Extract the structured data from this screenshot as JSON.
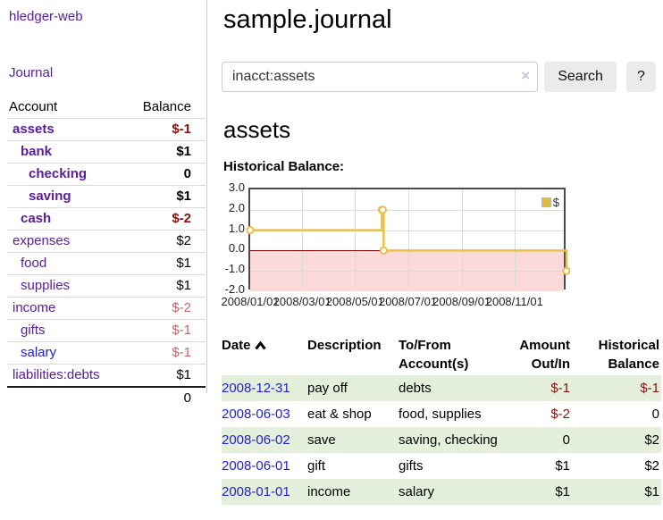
{
  "app": {
    "title": "hledger-web",
    "nav_journal": "Journal"
  },
  "sidebar": {
    "header": {
      "account": "Account",
      "balance": "Balance"
    },
    "accounts": [
      {
        "name": "assets",
        "depth": 0,
        "bold": true,
        "blue": false,
        "balance": "$-1",
        "balance_style": "neg-strong"
      },
      {
        "name": "bank",
        "depth": 1,
        "bold": true,
        "blue": false,
        "balance": "$1",
        "balance_style": "pos"
      },
      {
        "name": "checking",
        "depth": 2,
        "bold": true,
        "blue": false,
        "balance": "0",
        "balance_style": "pos"
      },
      {
        "name": "saving",
        "depth": 2,
        "bold": true,
        "blue": false,
        "balance": "$1",
        "balance_style": "pos"
      },
      {
        "name": "cash",
        "depth": 1,
        "bold": true,
        "blue": false,
        "balance": "$-2",
        "balance_style": "neg-strong"
      },
      {
        "name": "expenses",
        "depth": 0,
        "bold": false,
        "blue": false,
        "balance": "$2",
        "balance_style": "pos"
      },
      {
        "name": "food",
        "depth": 1,
        "bold": false,
        "blue": false,
        "balance": "$1",
        "balance_style": "pos"
      },
      {
        "name": "supplies",
        "depth": 1,
        "bold": false,
        "blue": false,
        "balance": "$1",
        "balance_style": "pos"
      },
      {
        "name": "income",
        "depth": 0,
        "bold": false,
        "blue": false,
        "balance": "$-2",
        "balance_style": "neg-soft"
      },
      {
        "name": "gifts",
        "depth": 1,
        "bold": false,
        "blue": false,
        "balance": "$-1",
        "balance_style": "neg-soft"
      },
      {
        "name": "salary",
        "depth": 1,
        "bold": false,
        "blue": true,
        "balance": "$-1",
        "balance_style": "neg-soft"
      },
      {
        "name": "liabilities:debts",
        "depth": 0,
        "bold": false,
        "blue": false,
        "balance": "$1",
        "balance_style": "pos"
      }
    ],
    "total": "0"
  },
  "main": {
    "title": "sample.journal",
    "search": {
      "value": "inacct:assets",
      "clear_icon": "×",
      "button": "Search",
      "help_button": "?"
    },
    "account_heading": "assets",
    "chart_label": "Historical Balance:"
  },
  "chart_data": {
    "type": "line",
    "title": "Historical Balance",
    "legend": [
      "$"
    ],
    "legend_position": "top-right",
    "grid": true,
    "x_start": "2008-01-01",
    "x_end": "2008-12-31",
    "ylim": [
      -2.0,
      3.0
    ],
    "y_ticks": [
      "3.0",
      "2.0",
      "1.0",
      "0.0",
      "-1.0",
      "-2.0"
    ],
    "x_ticks": [
      "2008/01/01",
      "2008/03/01",
      "2008/05/01",
      "2008/07/01",
      "2008/09/01",
      "2008/11/01"
    ],
    "series": [
      {
        "name": "$",
        "points": [
          {
            "date": "2008-01-01",
            "value": 1
          },
          {
            "date": "2008-06-01",
            "value": 2
          },
          {
            "date": "2008-06-02",
            "value": 2
          },
          {
            "date": "2008-06-03",
            "value": 0
          },
          {
            "date": "2008-12-31",
            "value": -1
          }
        ]
      }
    ],
    "colors": {
      "line": "#e8c04f",
      "marker_fill": "#ffffff",
      "negative_region": "#fcdada",
      "zero_line": "#8b0000"
    }
  },
  "register": {
    "headers": [
      "Date",
      "Description",
      "To/From Account(s)",
      "Amount Out/In",
      "Historical Balance"
    ],
    "sort": "date-ascending",
    "rows": [
      {
        "date": "2008-12-31",
        "description": "pay off",
        "accounts": "debts",
        "amount": "$-1",
        "amount_neg": true,
        "balance": "$-1",
        "balance_neg": true
      },
      {
        "date": "2008-06-03",
        "description": "eat & shop",
        "accounts": "food, supplies",
        "amount": "$-2",
        "amount_neg": true,
        "balance": "0",
        "balance_neg": false
      },
      {
        "date": "2008-06-02",
        "description": "save",
        "accounts": "saving, checking",
        "amount": "0",
        "amount_neg": false,
        "balance": "$2",
        "balance_neg": false
      },
      {
        "date": "2008-06-01",
        "description": "gift",
        "accounts": "gifts",
        "amount": "$1",
        "amount_neg": false,
        "balance": "$2",
        "balance_neg": false
      },
      {
        "date": "2008-01-01",
        "description": "income",
        "accounts": "salary",
        "amount": "$1",
        "amount_neg": false,
        "balance": "$1",
        "balance_neg": false
      }
    ]
  }
}
